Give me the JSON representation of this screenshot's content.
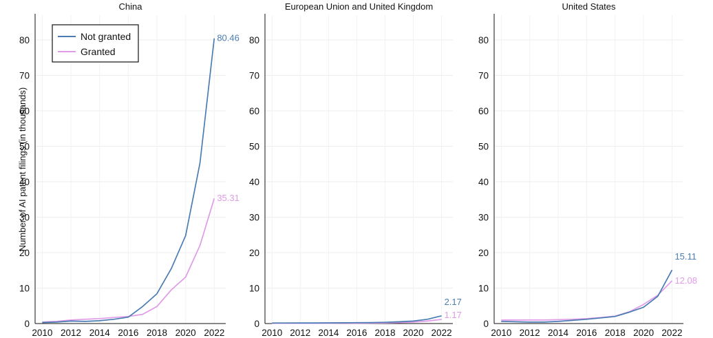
{
  "chart_data": {
    "type": "line",
    "ylabel": "Number of AI patent filings (in thousands)",
    "x": [
      2010,
      2011,
      2012,
      2013,
      2014,
      2015,
      2016,
      2017,
      2018,
      2019,
      2020,
      2021,
      2022
    ],
    "x_ticks": [
      2010,
      2012,
      2014,
      2016,
      2018,
      2020,
      2022
    ],
    "y_ticks": [
      0,
      10,
      20,
      30,
      40,
      50,
      60,
      70,
      80
    ],
    "ylim": [
      0,
      87
    ],
    "xlim": [
      2009.5,
      2022.8
    ],
    "grid": true,
    "legend": {
      "placement": "top-left",
      "panel": 0
    },
    "colors": {
      "Not granted": "#4a7cb3",
      "Granted": "#df9ae8"
    },
    "panels": [
      {
        "title": "China",
        "series": [
          {
            "name": "Not granted",
            "color": "#4a7cb3",
            "values": [
              0.3,
              0.4,
              0.7,
              0.6,
              0.8,
              1.2,
              1.8,
              4.8,
              8.4,
              15.5,
              24.8,
              45.2,
              80.46
            ]
          },
          {
            "name": "Granted",
            "color": "#df9ae8",
            "values": [
              0.4,
              0.6,
              1.0,
              1.2,
              1.4,
              1.7,
              2.0,
              2.6,
              4.8,
              9.5,
              13.1,
              22.0,
              35.31
            ]
          }
        ],
        "end_labels": [
          "80.46",
          "35.31"
        ]
      },
      {
        "title": "European Union and United Kingdom",
        "series": [
          {
            "name": "Not granted",
            "color": "#4a7cb3",
            "values": [
              0.15,
              0.15,
              0.17,
              0.18,
              0.2,
              0.22,
              0.25,
              0.28,
              0.35,
              0.5,
              0.7,
              1.2,
              2.17
            ]
          },
          {
            "name": "Granted",
            "color": "#df9ae8",
            "values": [
              0.05,
              0.06,
              0.06,
              0.07,
              0.08,
              0.09,
              0.1,
              0.12,
              0.15,
              0.25,
              0.4,
              0.7,
              1.17
            ]
          }
        ],
        "end_labels": [
          "2.17",
          "1.17"
        ]
      },
      {
        "title": "United States",
        "series": [
          {
            "name": "Not granted",
            "color": "#4a7cb3",
            "values": [
              0.6,
              0.5,
              0.4,
              0.4,
              0.6,
              0.9,
              1.2,
              1.6,
              2.0,
              3.2,
              4.6,
              7.7,
              15.11
            ]
          },
          {
            "name": "Granted",
            "color": "#df9ae8",
            "values": [
              1.0,
              1.0,
              1.0,
              1.0,
              1.1,
              1.2,
              1.4,
              1.7,
              2.1,
              3.3,
              5.4,
              8.0,
              12.08
            ]
          }
        ],
        "end_labels": [
          "15.11",
          "12.08"
        ]
      }
    ]
  }
}
